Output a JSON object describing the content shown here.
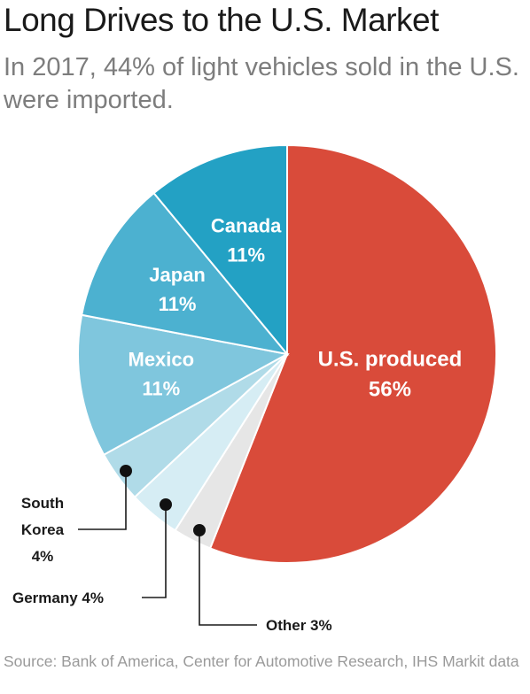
{
  "header": {
    "title": "Long Drives to the U.S. Market",
    "subtitle": "In 2017, 44% of light vehicles sold in the U.S. were imported."
  },
  "footer": {
    "source": "Source: Bank of America, Center for Automotive Research, IHS Markit data"
  },
  "chart_data": {
    "type": "pie",
    "title": "Long Drives to the U.S. Market",
    "slices": [
      {
        "label": "U.S. produced",
        "value": 56,
        "value_label": "56%",
        "color": "#d94b3a"
      },
      {
        "label": "Other",
        "value": 3,
        "value_label": "3%",
        "color": "#e6e6e6"
      },
      {
        "label": "Germany",
        "value": 4,
        "value_label": "4%",
        "color": "#d6edf4"
      },
      {
        "label": "South Korea",
        "value": 4,
        "value_label": "4%",
        "color": "#b0dbe8"
      },
      {
        "label": "Mexico",
        "value": 11,
        "value_label": "11%",
        "color": "#7fc6dd"
      },
      {
        "label": "Japan",
        "value": 11,
        "value_label": "11%",
        "color": "#4cb1d0"
      },
      {
        "label": "Canada",
        "value": 11,
        "value_label": "11%",
        "color": "#23a1c4"
      }
    ],
    "inside_labels": [
      {
        "slice": "U.S. produced",
        "lines": [
          "U.S. produced",
          "56%"
        ]
      },
      {
        "slice": "Mexico",
        "lines": [
          "Mexico",
          "11%"
        ]
      },
      {
        "slice": "Japan",
        "lines": [
          "Japan",
          "11%"
        ]
      },
      {
        "slice": "Canada",
        "lines": [
          "Canada",
          "11%"
        ]
      }
    ],
    "outside_labels": [
      {
        "slice": "South Korea",
        "lines": [
          "South",
          "Korea",
          "4%"
        ]
      },
      {
        "slice": "Germany",
        "lines": [
          "Germany 4%"
        ]
      },
      {
        "slice": "Other",
        "lines": [
          "Other 3%"
        ]
      }
    ],
    "start": "12 o'clock",
    "direction": "clockwise"
  }
}
